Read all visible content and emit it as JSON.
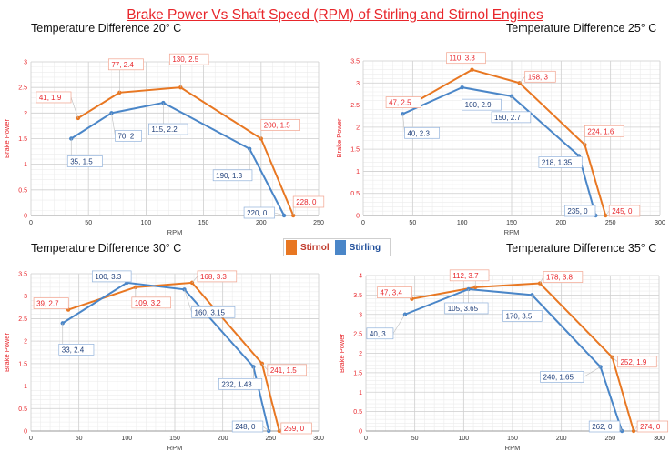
{
  "title": "Brake Power Vs Shaft Speed (RPM) of Stirling and Stirnol Engines",
  "legend": {
    "stirnol_label": "Stirnol",
    "stirling_label": "Stirling",
    "stirnol_color": "#e87722",
    "stirling_color": "#4a86c8"
  },
  "chart_data": [
    {
      "type": "line",
      "title": "Temperature Difference 20° C",
      "xlabel": "RPM",
      "ylabel": "Brake Power",
      "xlim": [
        0,
        250
      ],
      "ylim": [
        0,
        3
      ],
      "xticks": [
        0,
        50,
        100,
        150,
        200,
        250
      ],
      "yticks": [
        0,
        0.5,
        1,
        1.5,
        2,
        2.5,
        3
      ],
      "grid": true,
      "series": [
        {
          "name": "Stirnol",
          "x": [
            41,
            77,
            130,
            200,
            228
          ],
          "y": [
            1.9,
            2.4,
            2.5,
            1.5,
            0
          ],
          "labels": [
            "41, 1.9",
            "77, 2.4",
            "130, 2.5",
            "200, 1.5",
            "228, 0"
          ]
        },
        {
          "name": "Stirling",
          "x": [
            35,
            70,
            115,
            190,
            220
          ],
          "y": [
            1.5,
            2,
            2.2,
            1.3,
            0
          ],
          "labels": [
            "35, 1.5",
            "70, 2",
            "115, 2.2",
            "190, 1.3",
            "220, 0"
          ]
        }
      ]
    },
    {
      "type": "line",
      "title": "Temperature Difference 25° C",
      "xlabel": "RPM",
      "ylabel": "Brake Power",
      "xlim": [
        0,
        300
      ],
      "ylim": [
        0,
        3.5
      ],
      "xticks": [
        0,
        50,
        100,
        150,
        200,
        250,
        300
      ],
      "yticks": [
        0,
        0.5,
        1,
        1.5,
        2,
        2.5,
        3,
        3.5
      ],
      "grid": true,
      "series": [
        {
          "name": "Stirnol",
          "x": [
            47,
            110,
            158,
            224,
            245
          ],
          "y": [
            2.5,
            3.3,
            3,
            1.6,
            0
          ],
          "labels": [
            "47, 2.5",
            "110, 3.3",
            "158, 3",
            "224, 1.6",
            "245, 0"
          ]
        },
        {
          "name": "Stirling",
          "x": [
            40,
            100,
            150,
            218,
            235
          ],
          "y": [
            2.3,
            2.9,
            2.7,
            1.35,
            0
          ],
          "labels": [
            "40, 2.3",
            "100, 2.9",
            "150, 2.7",
            "218, 1.35",
            "235, 0"
          ]
        }
      ]
    },
    {
      "type": "line",
      "title": "Temperature Difference 30° C",
      "xlabel": "RPM",
      "ylabel": "Brake Power",
      "xlim": [
        0,
        300
      ],
      "ylim": [
        0,
        3.5
      ],
      "xticks": [
        0,
        50,
        100,
        150,
        200,
        250,
        300
      ],
      "yticks": [
        0,
        0.5,
        1,
        1.5,
        2,
        2.5,
        3,
        3.5
      ],
      "grid": true,
      "series": [
        {
          "name": "Stirnol",
          "x": [
            39,
            109,
            168,
            241,
            259
          ],
          "y": [
            2.7,
            3.2,
            3.3,
            1.5,
            0
          ],
          "labels": [
            "39, 2.7",
            "109, 3.2",
            "168, 3.3",
            "241, 1.5",
            "259, 0"
          ]
        },
        {
          "name": "Stirling",
          "x": [
            33,
            100,
            160,
            232,
            248
          ],
          "y": [
            2.4,
            3.3,
            3.15,
            1.43,
            0
          ],
          "labels": [
            "33, 2.4",
            "100, 3.3",
            "160, 3.15",
            "232, 1.43",
            "248, 0"
          ]
        }
      ]
    },
    {
      "type": "line",
      "title": "Temperature Difference 35° C",
      "xlabel": "RPM",
      "ylabel": "Brake Power",
      "xlim": [
        0,
        300
      ],
      "ylim": [
        0,
        4
      ],
      "xticks": [
        0,
        50,
        100,
        150,
        200,
        250,
        300
      ],
      "yticks": [
        0,
        0.5,
        1,
        1.5,
        2,
        2.5,
        3,
        3.5,
        4
      ],
      "grid": true,
      "series": [
        {
          "name": "Stirnol",
          "x": [
            47,
            112,
            178,
            252,
            274
          ],
          "y": [
            3.4,
            3.7,
            3.8,
            1.9,
            0
          ],
          "labels": [
            "47, 3.4",
            "112, 3.7",
            "178, 3.8",
            "252, 1.9",
            "274, 0"
          ]
        },
        {
          "name": "Stirling",
          "x": [
            40,
            105,
            170,
            240,
            262
          ],
          "y": [
            3,
            3.65,
            3.5,
            1.65,
            0
          ],
          "labels": [
            "40, 3",
            "105, 3.65",
            "170, 3.5",
            "240, 1.65",
            "262, 0"
          ]
        }
      ]
    }
  ]
}
